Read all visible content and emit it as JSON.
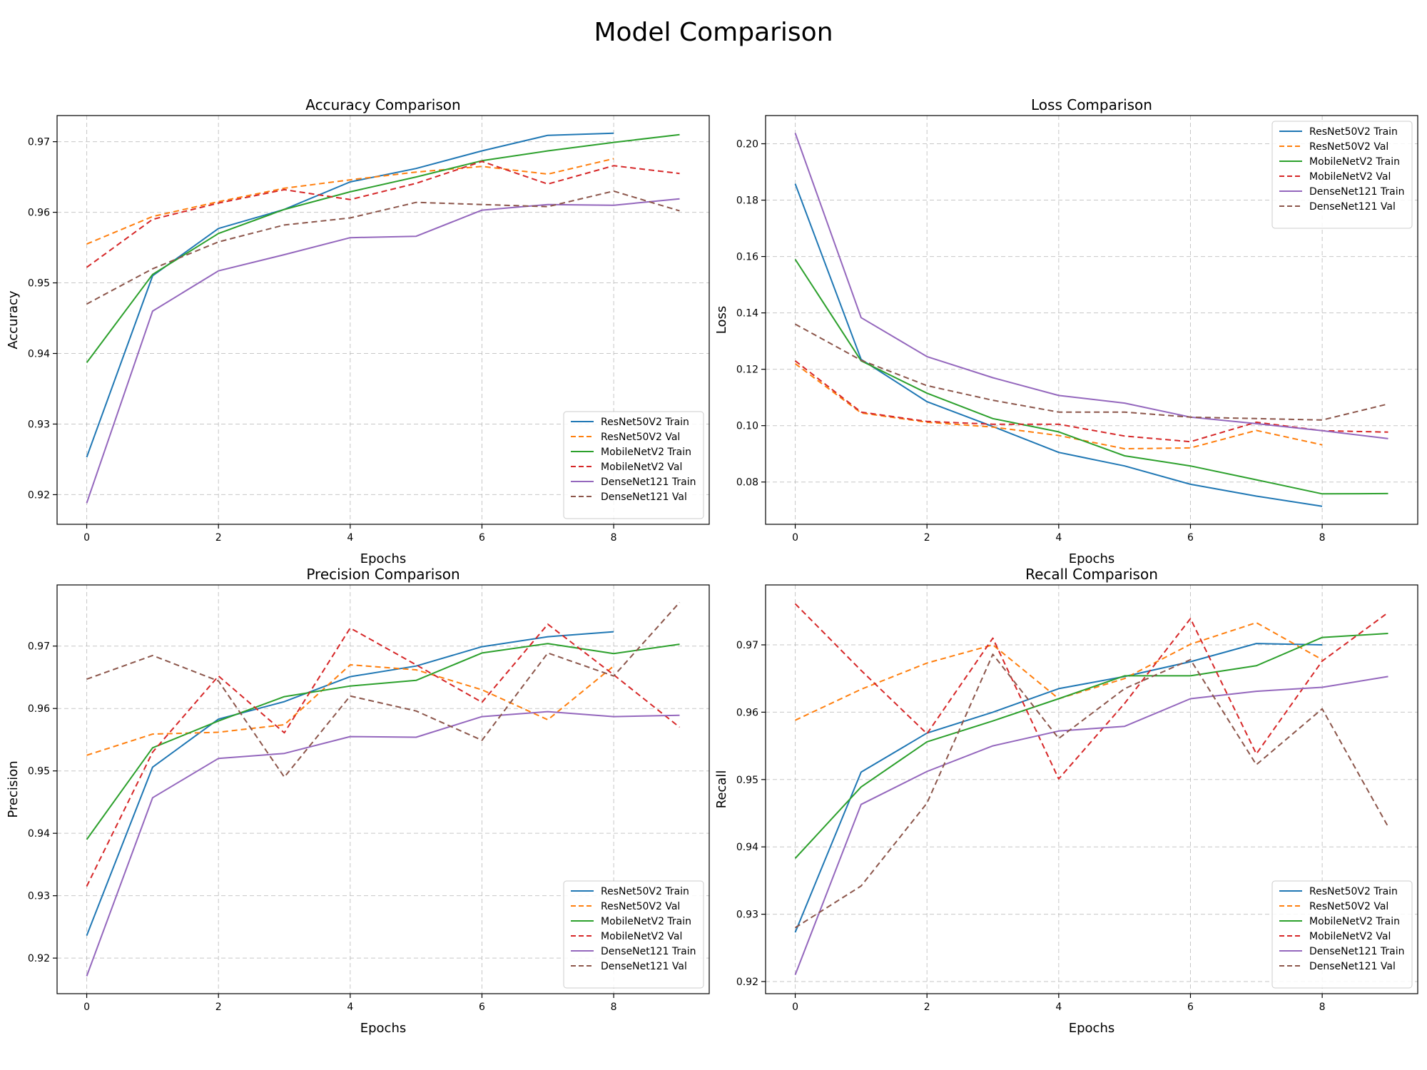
{
  "figure": {
    "title": "Model Comparison"
  },
  "chart_data": [
    {
      "type": "line",
      "title": "Accuracy Comparison",
      "xlabel": "Epochs",
      "ylabel": "Accuracy",
      "xlim": [
        -0.45,
        9.45
      ],
      "ylim": [
        0.9158,
        0.9737
      ],
      "xticks": [
        0,
        2,
        4,
        6,
        8
      ],
      "yticks": [
        0.92,
        0.93,
        0.94,
        0.95,
        0.96,
        0.97
      ],
      "yformat": 2,
      "grid": true,
      "legend": "lower-right",
      "series": [
        {
          "name": "ResNet50V2 Train",
          "color": "#1f77b4",
          "dash": false,
          "x": [
            0,
            1,
            2,
            3,
            4,
            5,
            6,
            7,
            8
          ],
          "values": [
            0.9253,
            0.951,
            0.9577,
            0.9604,
            0.9643,
            0.9662,
            0.9687,
            0.9709,
            0.9712
          ]
        },
        {
          "name": "ResNet50V2 Val",
          "color": "#ff7f0e",
          "dash": true,
          "x": [
            0,
            1,
            2,
            3,
            4,
            5,
            6,
            7,
            8
          ],
          "values": [
            0.9555,
            0.9594,
            0.9615,
            0.9634,
            0.9646,
            0.9657,
            0.9665,
            0.9654,
            0.9676
          ]
        },
        {
          "name": "MobileNetV2 Train",
          "color": "#2ca02c",
          "dash": false,
          "x": [
            0,
            1,
            2,
            3,
            4,
            5,
            6,
            7,
            8,
            9
          ],
          "values": [
            0.9387,
            0.9512,
            0.957,
            0.9604,
            0.9629,
            0.965,
            0.9673,
            0.9687,
            0.9699,
            0.971
          ]
        },
        {
          "name": "MobileNetV2 Val",
          "color": "#d62728",
          "dash": true,
          "x": [
            0,
            1,
            2,
            3,
            4,
            5,
            6,
            7,
            8,
            9
          ],
          "values": [
            0.9522,
            0.959,
            0.9613,
            0.9632,
            0.9618,
            0.9641,
            0.9672,
            0.964,
            0.9666,
            0.9655
          ]
        },
        {
          "name": "DenseNet121 Train",
          "color": "#9467bd",
          "dash": false,
          "x": [
            0,
            1,
            2,
            3,
            4,
            5,
            6,
            7,
            8,
            9
          ],
          "values": [
            0.9188,
            0.946,
            0.9517,
            0.954,
            0.9564,
            0.9566,
            0.9603,
            0.9611,
            0.961,
            0.9619
          ]
        },
        {
          "name": "DenseNet121 Val",
          "color": "#8c564b",
          "dash": true,
          "x": [
            0,
            1,
            2,
            3,
            4,
            5,
            6,
            7,
            8,
            9
          ],
          "values": [
            0.947,
            0.952,
            0.9558,
            0.9582,
            0.9592,
            0.9614,
            0.9611,
            0.9608,
            0.963,
            0.9602
          ]
        }
      ]
    },
    {
      "type": "line",
      "title": "Loss Comparison",
      "xlabel": "Epochs",
      "ylabel": "Loss",
      "xlim": [
        -0.45,
        9.45
      ],
      "ylim": [
        0.065,
        0.21
      ],
      "xticks": [
        0,
        2,
        4,
        6,
        8
      ],
      "yticks": [
        0.08,
        0.1,
        0.12,
        0.14,
        0.16,
        0.18,
        0.2
      ],
      "yformat": 2,
      "grid": true,
      "legend": "upper-right",
      "series": [
        {
          "name": "ResNet50V2 Train",
          "color": "#1f77b4",
          "dash": false,
          "x": [
            0,
            1,
            2,
            3,
            4,
            5,
            6,
            7,
            8
          ],
          "values": [
            0.1858,
            0.1235,
            0.1085,
            0.0997,
            0.0905,
            0.0857,
            0.0792,
            0.075,
            0.0714
          ]
        },
        {
          "name": "ResNet50V2 Val",
          "color": "#ff7f0e",
          "dash": true,
          "x": [
            0,
            1,
            2,
            3,
            4,
            5,
            6,
            7,
            8
          ],
          "values": [
            0.122,
            0.1045,
            0.1012,
            0.0995,
            0.0965,
            0.0918,
            0.0921,
            0.0983,
            0.0932
          ]
        },
        {
          "name": "MobileNetV2 Train",
          "color": "#2ca02c",
          "dash": false,
          "x": [
            0,
            1,
            2,
            3,
            4,
            5,
            6,
            7,
            8,
            9
          ],
          "values": [
            0.159,
            0.123,
            0.1115,
            0.1025,
            0.0978,
            0.0893,
            0.0857,
            0.0808,
            0.0758,
            0.0759
          ]
        },
        {
          "name": "MobileNetV2 Val",
          "color": "#d62728",
          "dash": true,
          "x": [
            0,
            1,
            2,
            3,
            4,
            5,
            6,
            7,
            8,
            9
          ],
          "values": [
            0.123,
            0.1048,
            0.1015,
            0.1005,
            0.1005,
            0.0963,
            0.0943,
            0.1012,
            0.0982,
            0.0977
          ]
        },
        {
          "name": "DenseNet121 Train",
          "color": "#9467bd",
          "dash": false,
          "x": [
            0,
            1,
            2,
            3,
            4,
            5,
            6,
            7,
            8,
            9
          ],
          "values": [
            0.2038,
            0.1383,
            0.1245,
            0.117,
            0.1107,
            0.108,
            0.103,
            0.1007,
            0.0982,
            0.0954
          ]
        },
        {
          "name": "DenseNet121 Val",
          "color": "#8c564b",
          "dash": true,
          "x": [
            0,
            1,
            2,
            3,
            4,
            5,
            6,
            7,
            8,
            9
          ],
          "values": [
            0.136,
            0.1232,
            0.1142,
            0.109,
            0.1048,
            0.1048,
            0.103,
            0.1025,
            0.102,
            0.1077
          ]
        }
      ]
    },
    {
      "type": "line",
      "title": "Precision Comparison",
      "xlabel": "Epochs",
      "ylabel": "Precision",
      "xlim": [
        -0.45,
        9.45
      ],
      "ylim": [
        0.9143,
        0.9798
      ],
      "xticks": [
        0,
        2,
        4,
        6,
        8
      ],
      "yticks": [
        0.92,
        0.93,
        0.94,
        0.95,
        0.96,
        0.97
      ],
      "yformat": 2,
      "grid": true,
      "legend": "lower-right",
      "series": [
        {
          "name": "ResNet50V2 Train",
          "color": "#1f77b4",
          "dash": false,
          "x": [
            0,
            1,
            2,
            3,
            4,
            5,
            6,
            7,
            8
          ],
          "values": [
            0.9236,
            0.9506,
            0.9583,
            0.9611,
            0.9651,
            0.9668,
            0.9699,
            0.9715,
            0.9723
          ]
        },
        {
          "name": "ResNet50V2 Val",
          "color": "#ff7f0e",
          "dash": true,
          "x": [
            0,
            1,
            2,
            3,
            4,
            5,
            6,
            7,
            8
          ],
          "values": [
            0.9525,
            0.9559,
            0.9562,
            0.9574,
            0.967,
            0.9662,
            0.963,
            0.9582,
            0.9668
          ]
        },
        {
          "name": "MobileNetV2 Train",
          "color": "#2ca02c",
          "dash": false,
          "x": [
            0,
            1,
            2,
            3,
            4,
            5,
            6,
            7,
            8,
            9
          ],
          "values": [
            0.939,
            0.9537,
            0.958,
            0.9619,
            0.9636,
            0.9645,
            0.9689,
            0.9704,
            0.9688,
            0.9703
          ]
        },
        {
          "name": "MobileNetV2 Val",
          "color": "#d62728",
          "dash": true,
          "x": [
            0,
            1,
            2,
            3,
            4,
            5,
            6,
            7,
            8,
            9
          ],
          "values": [
            0.9315,
            0.953,
            0.9652,
            0.9561,
            0.9729,
            0.967,
            0.961,
            0.9735,
            0.9654,
            0.957
          ]
        },
        {
          "name": "DenseNet121 Train",
          "color": "#9467bd",
          "dash": false,
          "x": [
            0,
            1,
            2,
            3,
            4,
            5,
            6,
            7,
            8,
            9
          ],
          "values": [
            0.9171,
            0.9457,
            0.952,
            0.9528,
            0.9555,
            0.9554,
            0.9587,
            0.9595,
            0.9587,
            0.9589
          ]
        },
        {
          "name": "DenseNet121 Val",
          "color": "#8c564b",
          "dash": true,
          "x": [
            0,
            1,
            2,
            3,
            4,
            5,
            6,
            7,
            8,
            9
          ],
          "values": [
            0.9647,
            0.9685,
            0.9644,
            0.949,
            0.962,
            0.9596,
            0.9549,
            0.9689,
            0.9652,
            0.977
          ]
        }
      ]
    },
    {
      "type": "line",
      "title": "Recall Comparison",
      "xlabel": "Epochs",
      "ylabel": "Recall",
      "xlim": [
        -0.45,
        9.45
      ],
      "ylim": [
        0.9182,
        0.9789
      ],
      "xticks": [
        0,
        2,
        4,
        6,
        8
      ],
      "yticks": [
        0.92,
        0.93,
        0.94,
        0.95,
        0.96,
        0.97
      ],
      "yformat": 2,
      "grid": true,
      "legend": "lower-right",
      "series": [
        {
          "name": "ResNet50V2 Train",
          "color": "#1f77b4",
          "dash": false,
          "x": [
            0,
            1,
            2,
            3,
            4,
            5,
            6,
            7,
            8
          ],
          "values": [
            0.9273,
            0.9511,
            0.9569,
            0.96,
            0.9635,
            0.9653,
            0.9675,
            0.9702,
            0.97
          ]
        },
        {
          "name": "ResNet50V2 Val",
          "color": "#ff7f0e",
          "dash": true,
          "x": [
            0,
            1,
            2,
            3,
            4,
            5,
            6,
            7,
            8
          ],
          "values": [
            0.9588,
            0.9634,
            0.9673,
            0.97,
            0.962,
            0.965,
            0.9701,
            0.9733,
            0.9678
          ]
        },
        {
          "name": "MobileNetV2 Train",
          "color": "#2ca02c",
          "dash": false,
          "x": [
            0,
            1,
            2,
            3,
            4,
            5,
            6,
            7,
            8,
            9
          ],
          "values": [
            0.9383,
            0.9489,
            0.9556,
            0.9587,
            0.962,
            0.9654,
            0.9654,
            0.9669,
            0.9711,
            0.9717
          ]
        },
        {
          "name": "MobileNetV2 Val",
          "color": "#d62728",
          "dash": true,
          "x": [
            0,
            1,
            2,
            3,
            4,
            5,
            6,
            7,
            8,
            9
          ],
          "values": [
            0.9761,
            0.9662,
            0.9568,
            0.971,
            0.9501,
            0.9613,
            0.9739,
            0.9538,
            0.9676,
            0.9748
          ]
        },
        {
          "name": "DenseNet121 Train",
          "color": "#9467bd",
          "dash": false,
          "x": [
            0,
            1,
            2,
            3,
            4,
            5,
            6,
            7,
            8,
            9
          ],
          "values": [
            0.921,
            0.9463,
            0.9512,
            0.955,
            0.9572,
            0.9579,
            0.962,
            0.9631,
            0.9637,
            0.9653
          ]
        },
        {
          "name": "DenseNet121 Val",
          "color": "#8c564b",
          "dash": true,
          "x": [
            0,
            1,
            2,
            3,
            4,
            5,
            6,
            7,
            8,
            9
          ],
          "values": [
            0.928,
            0.9342,
            0.9465,
            0.9686,
            0.9561,
            0.9635,
            0.9678,
            0.9522,
            0.9605,
            0.943
          ]
        }
      ]
    }
  ]
}
